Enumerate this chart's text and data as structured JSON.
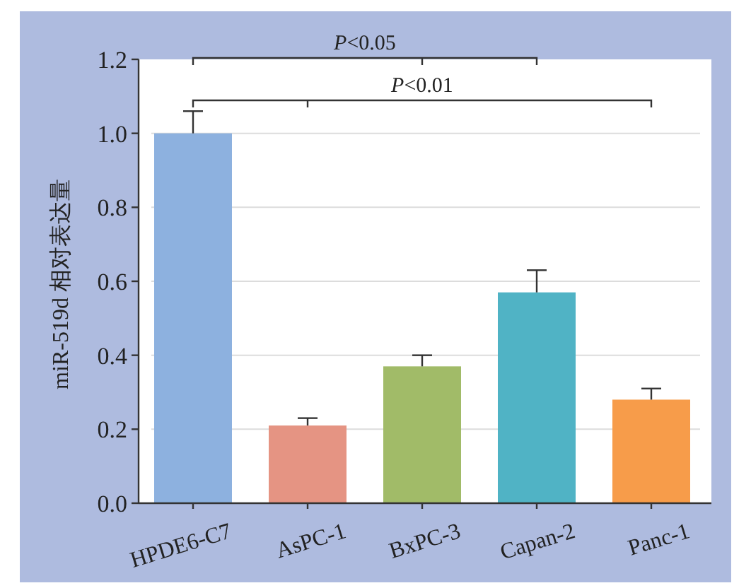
{
  "chart_data": {
    "type": "bar",
    "ylabel": "miR-519d 相对表达量",
    "categories": [
      "HPDE6-C7",
      "AsPC-1",
      "BxPC-3",
      "Capan-2",
      "Panc-1"
    ],
    "values": [
      1.0,
      0.21,
      0.37,
      0.57,
      0.28
    ],
    "errors": [
      0.06,
      0.02,
      0.03,
      0.06,
      0.03
    ],
    "colors": [
      "#8db1df",
      "#e59483",
      "#a1bb68",
      "#50b3c5",
      "#f79c4a"
    ],
    "ylim": [
      0,
      1.2
    ],
    "yticks": [
      {
        "value": 0,
        "label": "0.0"
      },
      0.2,
      0.4,
      0.6,
      0.8,
      {
        "value": 1,
        "label": "1.0"
      },
      1.2
    ],
    "grid": "y",
    "annotations": [
      "*P*<0.05",
      "*P*<0.01"
    ]
  }
}
